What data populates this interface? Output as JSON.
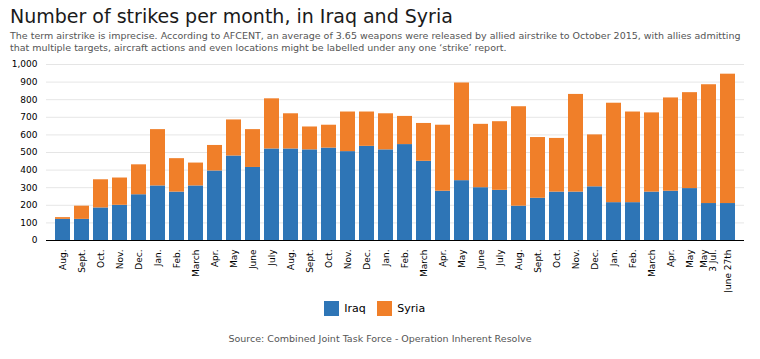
{
  "chart_data": {
    "type": "bar",
    "stacked": true,
    "title": "Number of strikes per month, in Iraq and Syria",
    "subtitle": "The term airstrike is imprecise. According to AFCENT, an average of 3.65 weapons were released by allied airstrike to October 2015, with allies admitting that multiple targets, aircraft actions and even locations might be labelled under any one ‘strike’ report.",
    "source": "Source: Combined Joint Task Force - Operation Inherent Resolve",
    "categories": [
      "Aug.",
      "Sept.",
      "Oct.",
      "Nov.",
      "Dec.",
      "Jan.",
      "Feb.",
      "March",
      "Apr.",
      "May",
      "June",
      "July",
      "Aug.",
      "Sept.",
      "Oct.",
      "Nov.",
      "Dec.",
      "Jan.",
      "Feb.",
      "March",
      "Apr.",
      "May",
      "June",
      "July",
      "Aug.",
      "Sept.",
      "Oct.",
      "Nov.",
      "Dec.",
      "Jan.",
      "Feb.",
      "March",
      "Apr.",
      "May",
      "May\n3 Jul.",
      "June 27th"
    ],
    "series": [
      {
        "name": "Iraq",
        "color": "#2e75b6",
        "values": [
          120,
          120,
          185,
          200,
          260,
          310,
          275,
          310,
          395,
          480,
          415,
          520,
          520,
          515,
          525,
          505,
          535,
          515,
          545,
          450,
          280,
          340,
          300,
          285,
          195,
          240,
          275,
          275,
          305,
          215,
          215,
          275,
          280,
          295,
          210,
          210
        ]
      },
      {
        "name": "Syria",
        "color": "#f07f29",
        "values": [
          10,
          75,
          160,
          155,
          170,
          320,
          190,
          130,
          145,
          205,
          215,
          285,
          200,
          130,
          130,
          225,
          195,
          205,
          160,
          215,
          375,
          555,
          360,
          390,
          565,
          345,
          305,
          555,
          295,
          565,
          515,
          450,
          530,
          545,
          675,
          735
        ]
      }
    ],
    "ylim": [
      0,
      1000
    ],
    "yticks": [
      0,
      100,
      200,
      300,
      400,
      500,
      600,
      700,
      800,
      900,
      1000
    ],
    "grid": true,
    "legend": "bottom"
  }
}
